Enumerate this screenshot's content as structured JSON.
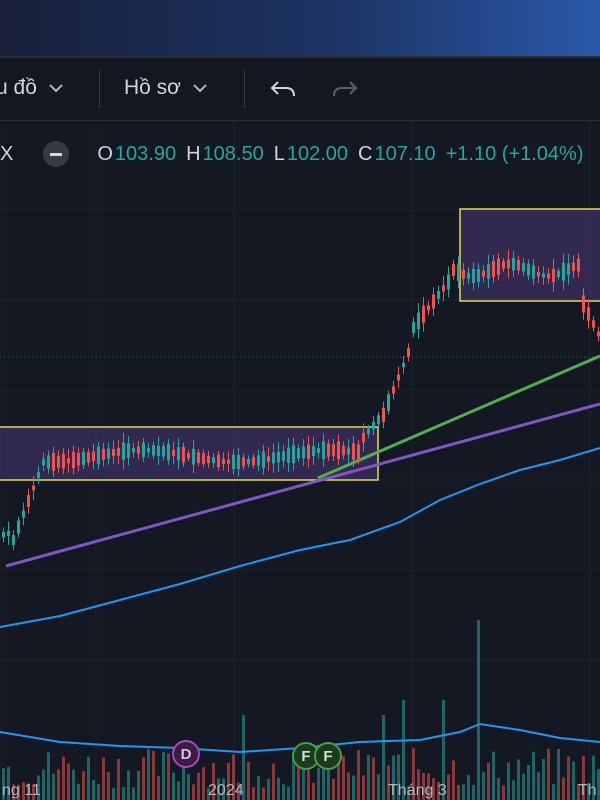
{
  "toolbar": {
    "chart_menu_label": "u đồ",
    "profile_menu_label": "Hồ sơ"
  },
  "icons": {
    "chevron": "chevron-down-icon",
    "undo": "undo-icon",
    "redo": "redo-icon",
    "collapse": "minus-icon"
  },
  "legend": {
    "symbol_fragment": "X",
    "open_label": "O",
    "open_value": "103.90",
    "high_label": "H",
    "high_value": "108.50",
    "low_label": "L",
    "low_value": "102.00",
    "close_label": "C",
    "close_value": "107.10",
    "change": "+1.10 (+1.04%)"
  },
  "x_axis": {
    "labels": [
      "ng 11",
      "2024",
      "Tháng 3",
      "Th"
    ]
  },
  "event_markers": [
    {
      "type": "dividend",
      "label": "D"
    },
    {
      "type": "financials",
      "label": "F"
    },
    {
      "type": "financials",
      "label": "F"
    }
  ],
  "colors": {
    "up": "#26a69a",
    "down": "#ef5350",
    "ma_fast": "#4caf50",
    "ma_mid": "#7e57c2",
    "ma_slow": "#2196f3",
    "zone_border": "#e6d84a"
  },
  "chart_data": {
    "type": "candlestick",
    "last_bar": {
      "open": 103.9,
      "high": 108.5,
      "low": 102.0,
      "close": 107.1,
      "change": 1.1,
      "change_pct": 1.04
    },
    "overlays": [
      "consolidation zone",
      "consolidation zone",
      "trend line",
      "trend line",
      "moving average",
      "volume moving average"
    ]
  }
}
